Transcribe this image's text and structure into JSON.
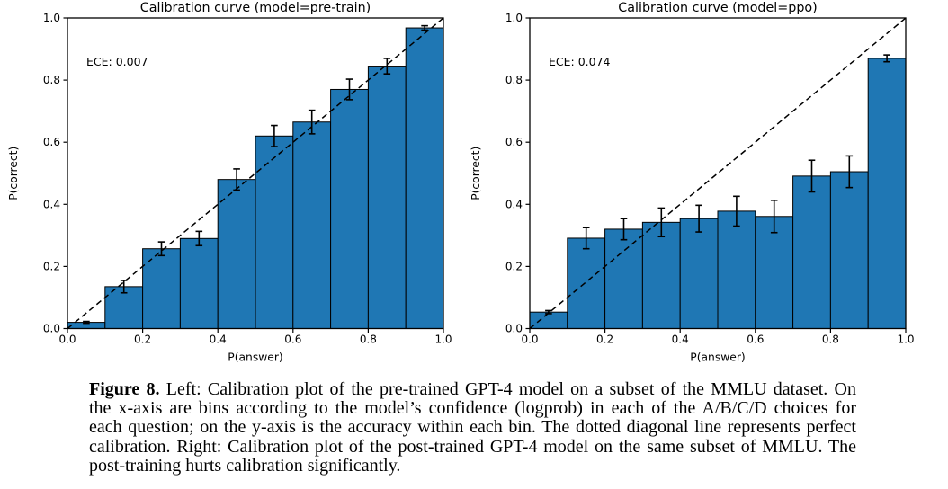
{
  "colors": {
    "bar_fill": "#1f77b4",
    "bar_edge": "#000000",
    "diagonal": "#000000",
    "text": "#000000",
    "background": "#ffffff"
  },
  "chart_data": [
    {
      "type": "bar",
      "title": "Calibration curve (model=pre-train)",
      "xlabel": "P(answer)",
      "ylabel": "P(correct)",
      "annotation": "ECE: 0.007",
      "xlim": [
        0,
        1
      ],
      "ylim": [
        0,
        1
      ],
      "bin_width": 0.1,
      "xticks": [
        "0.0",
        "0.2",
        "0.4",
        "0.6",
        "0.8",
        "1.0"
      ],
      "yticks": [
        "0.0",
        "0.2",
        "0.4",
        "0.6",
        "0.8",
        "1.0"
      ],
      "values": [
        0.02,
        0.135,
        0.257,
        0.29,
        0.48,
        0.62,
        0.665,
        0.77,
        0.845,
        0.968
      ],
      "errors": [
        0.003,
        0.02,
        0.022,
        0.023,
        0.034,
        0.034,
        0.038,
        0.033,
        0.025,
        0.007
      ],
      "diagonal_line": "dashed, perfect calibration y=x",
      "grid": false,
      "legend": null
    },
    {
      "type": "bar",
      "title": "Calibration curve (model=ppo)",
      "xlabel": "P(answer)",
      "ylabel": "P(correct)",
      "annotation": "ECE: 0.074",
      "xlim": [
        0,
        1
      ],
      "ylim": [
        0,
        1
      ],
      "bin_width": 0.1,
      "xticks": [
        "0.0",
        "0.2",
        "0.4",
        "0.6",
        "0.8",
        "1.0"
      ],
      "yticks": [
        "0.0",
        "0.2",
        "0.4",
        "0.6",
        "0.8",
        "1.0"
      ],
      "values": [
        0.053,
        0.291,
        0.32,
        0.342,
        0.354,
        0.378,
        0.361,
        0.491,
        0.505,
        0.87
      ],
      "errors": [
        0.005,
        0.034,
        0.034,
        0.046,
        0.043,
        0.048,
        0.052,
        0.051,
        0.051,
        0.011
      ],
      "diagonal_line": "dashed, perfect calibration y=x",
      "grid": false,
      "legend": null
    }
  ],
  "caption": {
    "label": "Figure 8.",
    "lines": [
      "Left: Calibration plot of the pre-trained GPT-4 model on a subset of the MMLU dataset. On",
      "the x-axis are bins according to the model’s confidence (logprob) in each of the A/B/C/D choices for",
      "each question; on the y-axis is the accuracy within each bin. The dotted diagonal line represents perfect",
      "calibration. Right: Calibration plot of the post-trained GPT-4 model on the same subset of MMLU. The",
      "post-training hurts calibration significantly."
    ]
  }
}
